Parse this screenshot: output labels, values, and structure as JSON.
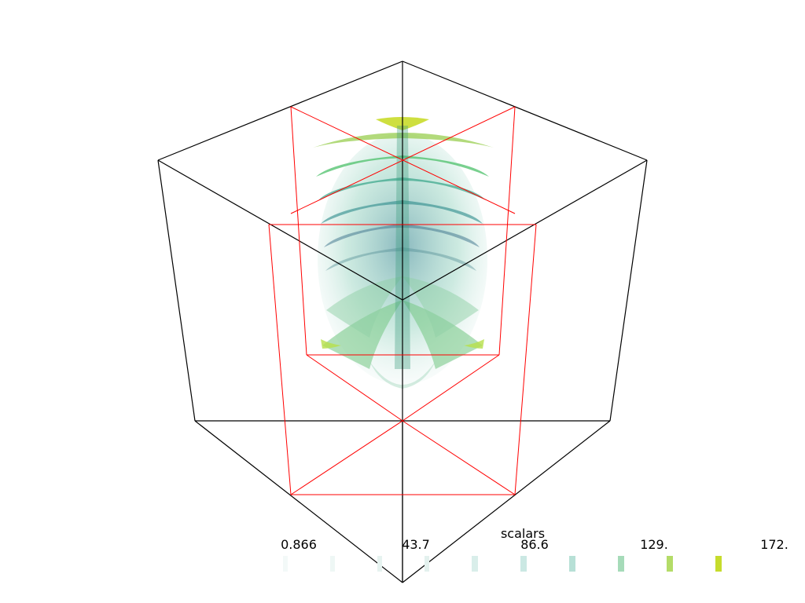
{
  "scalar_bar": {
    "title": "scalars",
    "ticks": [
      "0.866",
      "43.7",
      "86.6",
      "129.",
      "172."
    ],
    "range": [
      0.866,
      172.0
    ],
    "colors": {
      "low": "#440154",
      "mid": "#21918c",
      "high": "#fde725"
    }
  },
  "scene": {
    "bounding_box_color": "#000000",
    "slice_plane_color": "#ff0000",
    "volume_colormap": "viridis"
  }
}
